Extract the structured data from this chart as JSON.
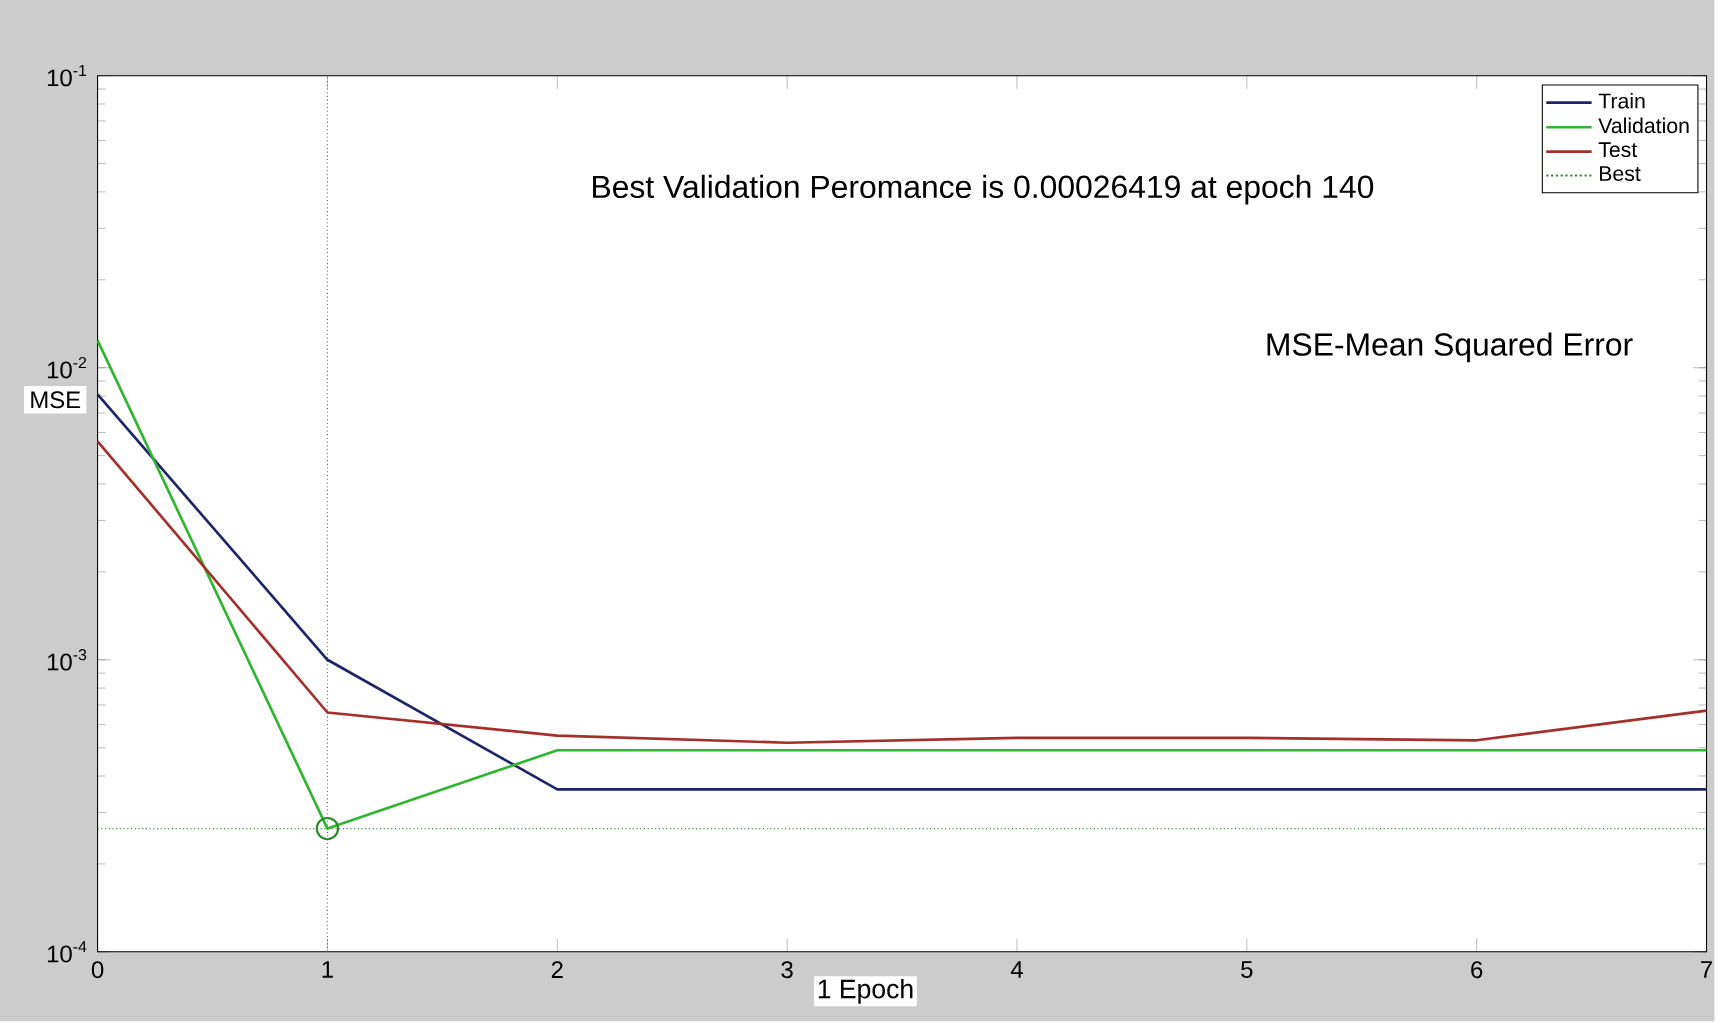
{
  "chart_data": {
    "type": "line",
    "xlabel": "1 Epoch",
    "ylabel": "MSE",
    "annotations": [
      "Best Validation Peromance is 0.00026419 at epoch 140",
      "MSE-Mean Squared Error"
    ],
    "x": [
      0,
      1,
      2,
      3,
      4,
      5,
      6,
      7
    ],
    "series": [
      {
        "name": "Train",
        "color": "#1c2566",
        "values": [
          0.0081,
          0.001,
          0.00036,
          0.00036,
          0.00036,
          0.00036,
          0.00036,
          0.00036
        ]
      },
      {
        "name": "Validation",
        "color": "#2fb52f",
        "values": [
          0.0124,
          0.00026419,
          0.00049,
          0.00049,
          0.00049,
          0.00049,
          0.00049,
          0.00049
        ]
      },
      {
        "name": "Test",
        "color": "#a3302a",
        "values": [
          0.0056,
          0.00066,
          0.00055,
          0.00052,
          0.00054,
          0.00054,
          0.00053,
          0.00067
        ]
      },
      {
        "name": "Best",
        "type": "scatter",
        "color": "#2a8a2a",
        "marker": "circle",
        "line_style": "dotted",
        "x": [
          1
        ],
        "values": [
          0.00026419
        ]
      }
    ],
    "ref_lines": [
      {
        "axis": "x",
        "value": 1,
        "color": "#2a8a2a",
        "line_style": "dotted"
      },
      {
        "axis": "y",
        "value": 0.00026419,
        "color": "#2a8a2a",
        "line_style": "dotted"
      }
    ],
    "log": "y",
    "legend": "top right",
    "xlim": [
      0,
      7
    ],
    "xticks": [
      0,
      1,
      2,
      3,
      4,
      5,
      6,
      7
    ],
    "ylim": [
      0.0001,
      0.1
    ],
    "yticks": [
      {
        "value": 0.0001,
        "label": "10$^{-4}$"
      },
      {
        "value": 0.001,
        "label": "10$^{-3}$"
      },
      {
        "value": 0.01,
        "label": "10$^{-2}$"
      },
      {
        "value": 0.1,
        "label": "10$^{-1}$"
      }
    ]
  }
}
